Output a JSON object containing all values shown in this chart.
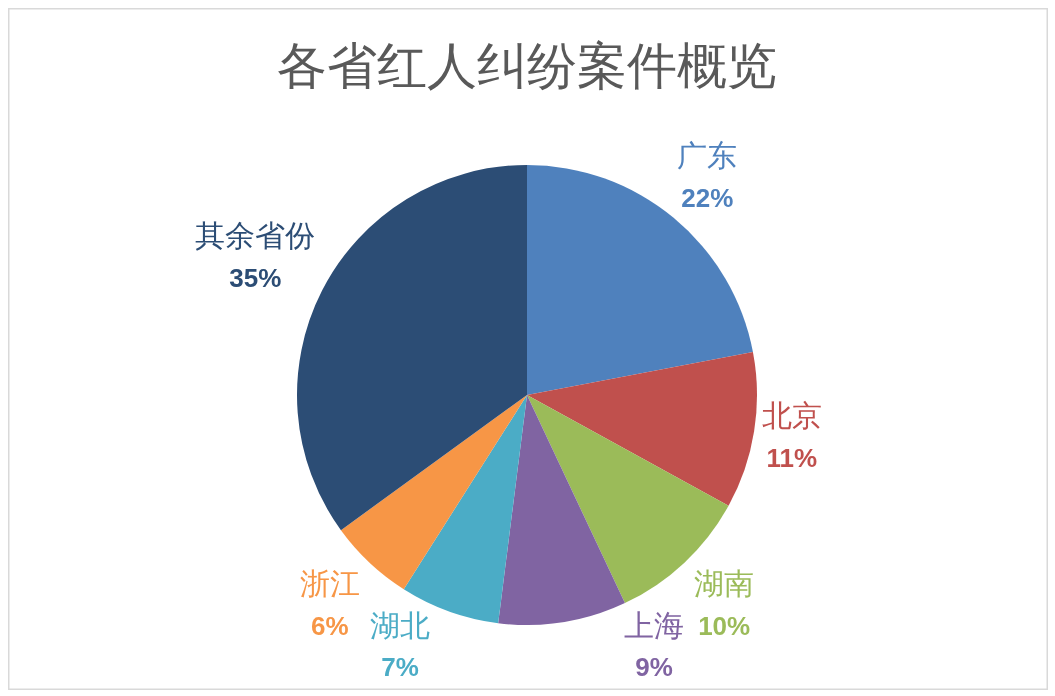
{
  "chart_data": {
    "type": "pie",
    "title": "各省红人纠纷案件概览",
    "categories": [
      "广东",
      "北京",
      "湖南",
      "上海",
      "湖北",
      "浙江",
      "其余省份"
    ],
    "values": [
      22,
      11,
      10,
      9,
      7,
      6,
      35
    ],
    "colors": [
      "#4f81bd",
      "#c0504d",
      "#9bbb59",
      "#8064a2",
      "#4bacc6",
      "#f79646",
      "#2c4d75"
    ],
    "value_labels": [
      "22%",
      "11%",
      "10%",
      "9%",
      "7%",
      "6%",
      "35%"
    ]
  }
}
